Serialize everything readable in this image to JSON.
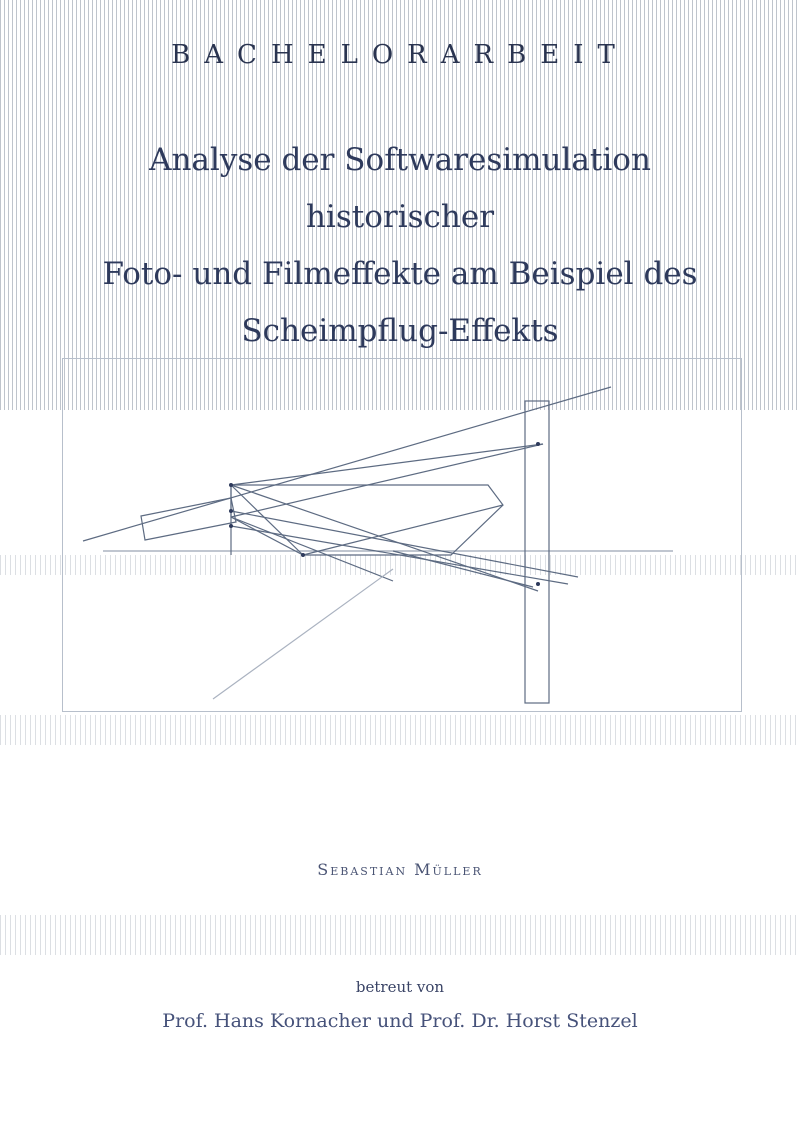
{
  "document": {
    "doc_type": "BACHELORARBEIT",
    "title_lines": [
      "Analyse der Softwaresimulation historischer",
      "Foto- und Filmeffekte am Beispiel des",
      "Scheimpflug-Effekts"
    ],
    "author": "Sebastian Müller",
    "supervised_by": "betreut von",
    "supervisors": "Prof. Hans Kornacher und Prof. Dr. Horst Stenzel"
  },
  "colors": {
    "ink": "#2e3a5c",
    "diagram_line": "#5d6b82",
    "frame": "#b7bfcb"
  }
}
